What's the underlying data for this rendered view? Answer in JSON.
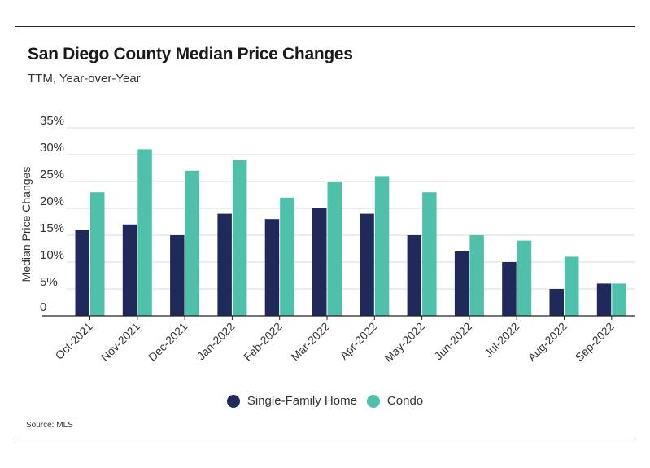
{
  "header": {
    "title": "San Diego County Median Price Changes",
    "subtitle": "TTM, Year-over-Year"
  },
  "footer": {
    "source": "Source: MLS"
  },
  "colors": {
    "single_family": "#1f2a5a",
    "condo": "#4fc0a9",
    "grid": "#d9d9d9",
    "axis": "#222222"
  },
  "chart_data": {
    "type": "bar",
    "title": "San Diego County Median Price Changes",
    "subtitle": "TTM, Year-over-Year",
    "xlabel": "",
    "ylabel": "Median Price Changes",
    "ylim": [
      0,
      35
    ],
    "yticks": [
      0,
      5,
      10,
      15,
      20,
      25,
      30,
      35
    ],
    "ytick_labels": [
      "0",
      "5%",
      "10%",
      "15%",
      "20%",
      "25%",
      "30%",
      "35%"
    ],
    "grid": true,
    "legend_position": "bottom-center",
    "categories": [
      "Oct-2021",
      "Nov-2021",
      "Dec-2021",
      "Jan-2022",
      "Feb-2022",
      "Mar-2022",
      "Apr-2022",
      "May-2022",
      "Jun-2022",
      "Jul-2022",
      "Aug-2022",
      "Sep-2022"
    ],
    "series": [
      {
        "name": "Single-Family Home",
        "color": "#1f2a5a",
        "values": [
          16,
          17,
          15,
          19,
          18,
          20,
          19,
          15,
          12,
          10,
          5,
          6
        ]
      },
      {
        "name": "Condo",
        "color": "#4fc0a9",
        "values": [
          23,
          31,
          27,
          29,
          22,
          25,
          26,
          23,
          15,
          14,
          11,
          6
        ]
      }
    ]
  }
}
